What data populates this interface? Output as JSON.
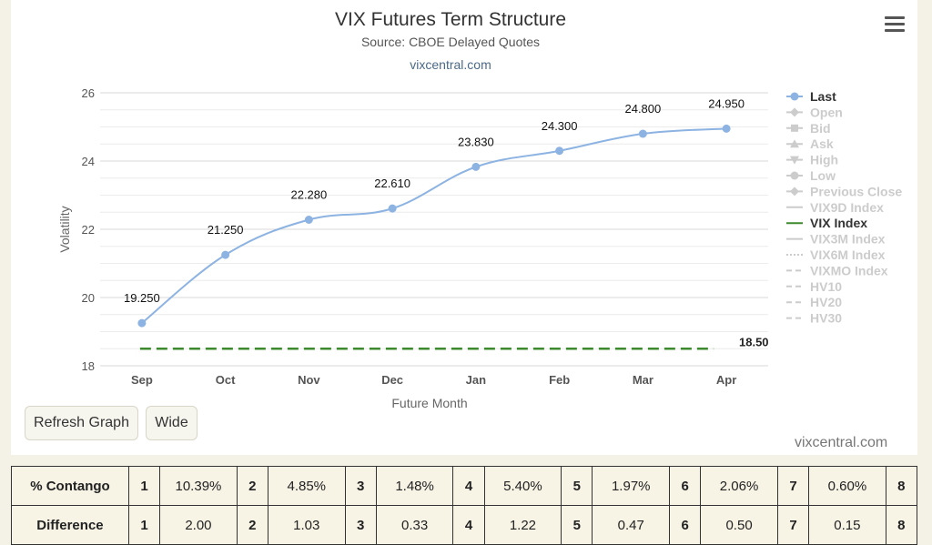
{
  "header": {
    "title": "VIX Futures Term Structure",
    "subtitle": "Source: CBOE Delayed Quotes",
    "link": "vixcentral.com",
    "menu_icon": "hamburger-menu-icon"
  },
  "chart_data": {
    "type": "line",
    "title": "VIX Futures Term Structure",
    "subtitle": "Source: CBOE Delayed Quotes",
    "xlabel": "Future Month",
    "ylabel": "Volatility",
    "categories": [
      "Sep",
      "Oct",
      "Nov",
      "Dec",
      "Jan",
      "Feb",
      "Mar",
      "Apr"
    ],
    "ylim": [
      18,
      26
    ],
    "yticks": [
      18,
      20,
      22,
      24,
      26
    ],
    "grid": true,
    "legend_position": "right",
    "series": [
      {
        "name": "Last",
        "values": [
          19.25,
          21.25,
          22.28,
          22.61,
          23.83,
          24.3,
          24.8,
          24.95
        ],
        "labels": [
          "19.250",
          "21.250",
          "22.280",
          "22.610",
          "23.830",
          "24.300",
          "24.800",
          "24.950"
        ],
        "color": "#8db3e2"
      }
    ],
    "reference_lines": [
      {
        "name": "VIX Index",
        "value": 18.5,
        "label": "18.50",
        "color": "#3d8a2e",
        "style": "dashed"
      }
    ],
    "legend": [
      {
        "name": "Last",
        "active": true,
        "marker": "circle"
      },
      {
        "name": "Open",
        "active": false,
        "marker": "diamond"
      },
      {
        "name": "Bid",
        "active": false,
        "marker": "square"
      },
      {
        "name": "Ask",
        "active": false,
        "marker": "triangle-up"
      },
      {
        "name": "High",
        "active": false,
        "marker": "triangle-down"
      },
      {
        "name": "Low",
        "active": false,
        "marker": "circle"
      },
      {
        "name": "Previous Close",
        "active": false,
        "marker": "diamond"
      },
      {
        "name": "VIX9D Index",
        "active": false,
        "marker": "line"
      },
      {
        "name": "VIX Index",
        "active": true,
        "marker": "line-green"
      },
      {
        "name": "VIX3M Index",
        "active": false,
        "marker": "line"
      },
      {
        "name": "VIX6M Index",
        "active": false,
        "marker": "dotted"
      },
      {
        "name": "VIXMO Index",
        "active": false,
        "marker": "dashed"
      },
      {
        "name": "HV10",
        "active": false,
        "marker": "dashed"
      },
      {
        "name": "HV20",
        "active": false,
        "marker": "dashed"
      },
      {
        "name": "HV30",
        "active": false,
        "marker": "dashed"
      }
    ]
  },
  "buttons": {
    "refresh": "Refresh Graph",
    "wide": "Wide"
  },
  "credit": "vixcentral.com",
  "table": {
    "rows": [
      {
        "label": "% Contango",
        "cells": [
          [
            "1",
            "10.39%"
          ],
          [
            "2",
            "4.85%"
          ],
          [
            "3",
            "1.48%"
          ],
          [
            "4",
            "5.40%"
          ],
          [
            "5",
            "1.97%"
          ],
          [
            "6",
            "2.06%"
          ],
          [
            "7",
            "0.60%"
          ]
        ],
        "tail": "8"
      },
      {
        "label": "Difference",
        "cells": [
          [
            "1",
            "2.00"
          ],
          [
            "2",
            "1.03"
          ],
          [
            "3",
            "0.33"
          ],
          [
            "4",
            "1.22"
          ],
          [
            "5",
            "0.47"
          ],
          [
            "6",
            "0.50"
          ],
          [
            "7",
            "0.15"
          ]
        ],
        "tail": "8"
      }
    ]
  }
}
